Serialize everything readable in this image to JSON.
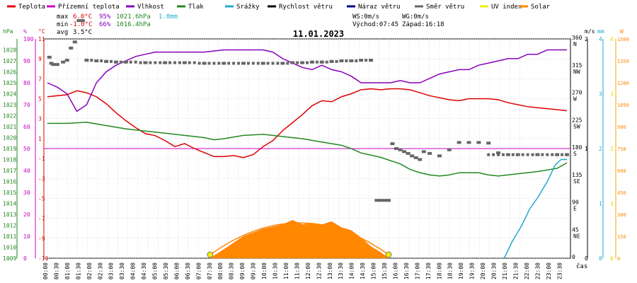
{
  "legend": [
    {
      "label": "Teplota",
      "color": "#dd0000"
    },
    {
      "label": "Přízemní teplota",
      "color": "#cc00cc"
    },
    {
      "label": "Vlhkost",
      "color": "#8800bb"
    },
    {
      "label": "Tlak",
      "color": "#228822"
    },
    {
      "label": "Srážky",
      "color": "#22aacc"
    },
    {
      "label": "Rychlost větru",
      "color": "#000000"
    },
    {
      "label": "Náraz větru",
      "color": "#000088"
    },
    {
      "label": "Směr větru",
      "color": "#666666"
    },
    {
      "label": "UV index",
      "color": "#eeee00"
    },
    {
      "label": "Solar",
      "color": "#ff8800"
    }
  ],
  "stats": {
    "max": {
      "label": "max",
      "temp": "6.0°C",
      "hum": "95%",
      "pres": "1021.6hPa",
      "rain": "1.8mm"
    },
    "min": {
      "label": "min",
      "temp": "-1.0°C",
      "hum": "66%",
      "pres": "1016.4hPa"
    },
    "avg": {
      "label": "avg",
      "temp": "3.5°C"
    }
  },
  "info": {
    "ws": "WS:0m/s",
    "wg": "WG:0m/s",
    "sunrise": "Východ:07:45",
    "sunset": "Západ:16:18"
  },
  "chart_data": {
    "type": "line",
    "title": "11.01.2023",
    "x_ticks": [
      "00:00",
      "00:30",
      "01:00",
      "01:30",
      "02:00",
      "02:30",
      "03:00",
      "03:30",
      "04:00",
      "04:30",
      "05:00",
      "05:30",
      "06:00",
      "06:30",
      "07:00",
      "07:30",
      "08:00",
      "08:30",
      "09:00",
      "09:30",
      "10:00",
      "10:30",
      "11:00",
      "11:30",
      "12:00",
      "12:30",
      "13:00",
      "13:30",
      "14:00",
      "14:30",
      "15:00",
      "15:30",
      "16:00",
      "16:30",
      "17:00",
      "17:30",
      "18:00",
      "18:30",
      "19:00",
      "19:30",
      "20:00",
      "20:30",
      "21:00",
      "21:30",
      "22:00",
      "22:30",
      "23:00",
      "23:30"
    ],
    "xlabel": "čas",
    "axes": {
      "pressure": {
        "unit": "hPa",
        "ticks": [
          "1028",
          "1027",
          "1026",
          "1025",
          "1024",
          "1023",
          "1022",
          "1021",
          "1020",
          "1019",
          "1018",
          "1017",
          "1016",
          "1015",
          "1014",
          "1013",
          "1012",
          "1011",
          "1010",
          "1009"
        ],
        "range": [
          1009,
          1029
        ]
      },
      "humidity": {
        "unit": "%",
        "ticks": [
          "100",
          "90",
          "80",
          "70",
          "60",
          "50",
          "40",
          "30",
          "20",
          "10",
          "0"
        ],
        "range": [
          0,
          100
        ]
      },
      "temperature": {
        "unit": "°C",
        "ticks": [
          "11",
          "9",
          "7",
          "5",
          "3",
          "1",
          "-1",
          "-3",
          "-5",
          "-7",
          "-9",
          "-11"
        ],
        "range": [
          -11,
          11
        ]
      },
      "wind_direction": {
        "ticks": [
          "360",
          "315",
          "270",
          "225",
          "180",
          "135",
          "90",
          "45",
          "0"
        ],
        "dir_labels": [
          "N",
          "NW",
          "W",
          "SW",
          "S",
          "SE",
          "E",
          "NE",
          ""
        ],
        "range": [
          0,
          360
        ]
      },
      "wind_speed": {
        "unit": "m/s",
        "ticks": [
          "2",
          "1",
          "0"
        ],
        "range": [
          0,
          2
        ]
      },
      "rain": {
        "unit": "mm",
        "ticks": [
          "4",
          "3",
          "2",
          "1",
          "0"
        ],
        "range": [
          0,
          4
        ]
      },
      "uv": {
        "ticks": [
          "4",
          "3",
          "2",
          "1",
          "0"
        ],
        "range": [
          0,
          4
        ]
      },
      "solar": {
        "unit": "W",
        "ticks": [
          "1500",
          "1350",
          "1200",
          "1050",
          "900",
          "750",
          "600",
          "450",
          "300",
          "150",
          "0"
        ],
        "range": [
          0,
          1500
        ]
      }
    },
    "series": [
      {
        "name": "Teplota",
        "axis": "temperature",
        "color": "#dd0000",
        "points": [
          [
            0,
            5.2
          ],
          [
            1,
            5.4
          ],
          [
            1.5,
            5.8
          ],
          [
            2,
            5.6
          ],
          [
            2.5,
            5.2
          ],
          [
            3,
            4.5
          ],
          [
            3.5,
            3.6
          ],
          [
            4,
            2.8
          ],
          [
            4.5,
            2.1
          ],
          [
            5,
            1.5
          ],
          [
            5.5,
            1.3
          ],
          [
            6,
            0.8
          ],
          [
            6.5,
            0.2
          ],
          [
            7,
            0.5
          ],
          [
            7.5,
            0.0
          ],
          [
            8,
            -0.4
          ],
          [
            8.5,
            -0.8
          ],
          [
            9,
            -0.8
          ],
          [
            9.5,
            -0.7
          ],
          [
            10,
            -0.9
          ],
          [
            10.5,
            -0.6
          ],
          [
            11,
            0.2
          ],
          [
            11.5,
            0.8
          ],
          [
            12,
            1.8
          ],
          [
            12.5,
            2.6
          ],
          [
            13,
            3.4
          ],
          [
            13.5,
            4.3
          ],
          [
            14,
            4.8
          ],
          [
            14.5,
            4.7
          ],
          [
            15,
            5.2
          ],
          [
            15.5,
            5.5
          ],
          [
            16,
            5.9
          ],
          [
            16.5,
            6.0
          ],
          [
            17,
            5.9
          ],
          [
            17.5,
            6.0
          ],
          [
            18,
            6.0
          ],
          [
            18.5,
            5.9
          ],
          [
            19,
            5.6
          ],
          [
            19.5,
            5.3
          ],
          [
            20,
            5.1
          ],
          [
            20.5,
            4.9
          ],
          [
            21,
            4.8
          ],
          [
            21.5,
            5.0
          ],
          [
            22,
            5.0
          ],
          [
            22.5,
            5.0
          ],
          [
            23,
            4.9
          ],
          [
            23.5,
            4.6
          ],
          [
            24,
            4.4
          ],
          [
            24.5,
            4.2
          ],
          [
            25,
            4.1
          ],
          [
            25.5,
            4.0
          ],
          [
            26,
            3.9
          ],
          [
            26.5,
            3.8
          ]
        ]
      },
      {
        "name": "Vlhkost",
        "axis": "humidity",
        "color": "#8800bb",
        "points": [
          [
            0,
            80
          ],
          [
            0.5,
            78
          ],
          [
            1,
            75
          ],
          [
            1.5,
            67
          ],
          [
            2,
            70
          ],
          [
            2.5,
            80
          ],
          [
            3,
            85
          ],
          [
            3.5,
            88
          ],
          [
            4,
            90
          ],
          [
            4.5,
            92
          ],
          [
            5,
            93
          ],
          [
            5.5,
            94
          ],
          [
            6,
            94
          ],
          [
            7,
            94
          ],
          [
            8,
            94
          ],
          [
            9,
            95
          ],
          [
            10,
            95
          ],
          [
            11,
            95
          ],
          [
            11.5,
            94
          ],
          [
            12,
            91
          ],
          [
            12.5,
            89
          ],
          [
            13,
            87
          ],
          [
            13.5,
            86
          ],
          [
            14,
            88
          ],
          [
            14.5,
            86
          ],
          [
            15,
            85
          ],
          [
            15.5,
            83
          ],
          [
            16,
            80
          ],
          [
            16.5,
            80
          ],
          [
            17,
            80
          ],
          [
            17.5,
            80
          ],
          [
            18,
            81
          ],
          [
            18.5,
            80
          ],
          [
            19,
            80
          ],
          [
            19.5,
            82
          ],
          [
            20,
            84
          ],
          [
            20.5,
            85
          ],
          [
            21,
            86
          ],
          [
            21.5,
            86
          ],
          [
            22,
            88
          ],
          [
            22.5,
            89
          ],
          [
            23,
            90
          ],
          [
            23.5,
            91
          ],
          [
            24,
            91
          ],
          [
            24.5,
            93
          ],
          [
            25,
            93
          ],
          [
            25.5,
            95
          ],
          [
            26,
            95
          ],
          [
            26.5,
            95
          ]
        ]
      },
      {
        "name": "Tlak",
        "axis": "pressure",
        "color": "#228822",
        "points": [
          [
            0,
            1021.3
          ],
          [
            1,
            1021.3
          ],
          [
            2,
            1021.4
          ],
          [
            3,
            1021.1
          ],
          [
            4,
            1020.8
          ],
          [
            5,
            1020.6
          ],
          [
            6,
            1020.4
          ],
          [
            7,
            1020.2
          ],
          [
            8,
            1020.0
          ],
          [
            8.5,
            1019.8
          ],
          [
            9,
            1019.9
          ],
          [
            10,
            1020.2
          ],
          [
            11,
            1020.3
          ],
          [
            12,
            1020.1
          ],
          [
            12.5,
            1020.0
          ],
          [
            13,
            1019.9
          ],
          [
            14,
            1019.6
          ],
          [
            15,
            1019.3
          ],
          [
            15.5,
            1019.0
          ],
          [
            16,
            1018.6
          ],
          [
            17,
            1018.2
          ],
          [
            18,
            1017.6
          ],
          [
            18.5,
            1017.1
          ],
          [
            19,
            1016.8
          ],
          [
            19.5,
            1016.6
          ],
          [
            20,
            1016.5
          ],
          [
            20.5,
            1016.6
          ],
          [
            21,
            1016.8
          ],
          [
            22,
            1016.8
          ],
          [
            22.5,
            1016.6
          ],
          [
            23,
            1016.5
          ],
          [
            24,
            1016.7
          ],
          [
            25,
            1016.9
          ],
          [
            26,
            1017.2
          ],
          [
            26.5,
            1017.7
          ]
        ]
      },
      {
        "name": "Srážky",
        "axis": "rain",
        "color": "#22aacc",
        "points": [
          [
            23.3,
            0
          ],
          [
            23.7,
            0.3
          ],
          [
            24.2,
            0.6
          ],
          [
            24.6,
            0.9
          ],
          [
            25,
            1.1
          ],
          [
            25.5,
            1.4
          ],
          [
            25.9,
            1.7
          ],
          [
            26.2,
            1.8
          ],
          [
            26.5,
            1.8
          ]
        ]
      },
      {
        "name": "Směr větru",
        "axis": "wind_direction",
        "color": "#666666",
        "points": [
          [
            0.1,
            330
          ],
          [
            0.2,
            320
          ],
          [
            0.3,
            318
          ],
          [
            0.5,
            318
          ],
          [
            0.8,
            322
          ],
          [
            1.0,
            325
          ],
          [
            1.2,
            345
          ],
          [
            1.4,
            355
          ],
          [
            1.6,
            390
          ],
          [
            1.8,
            390
          ],
          [
            2,
            325
          ],
          [
            2.5,
            324
          ],
          [
            3,
            323
          ],
          [
            3.5,
            322
          ],
          [
            4,
            322
          ],
          [
            5,
            321
          ],
          [
            6,
            321
          ],
          [
            7,
            321
          ],
          [
            8,
            320
          ],
          [
            9,
            320
          ],
          [
            10,
            320
          ],
          [
            11,
            320
          ],
          [
            12,
            320
          ],
          [
            12.5,
            321
          ],
          [
            13,
            321
          ],
          [
            13.5,
            322
          ],
          [
            14,
            322
          ],
          [
            14.5,
            323
          ],
          [
            15,
            324
          ],
          [
            15.5,
            324
          ],
          [
            16,
            325
          ],
          [
            16.5,
            325
          ],
          [
            16.8,
            95
          ],
          [
            17,
            95
          ],
          [
            17.2,
            95
          ],
          [
            17.4,
            95
          ],
          [
            17.6,
            188
          ],
          [
            17.8,
            180
          ],
          [
            18,
            178
          ],
          [
            18.2,
            175
          ],
          [
            18.4,
            172
          ],
          [
            18.6,
            168
          ],
          [
            18.8,
            165
          ],
          [
            19,
            162
          ],
          [
            19.2,
            175
          ],
          [
            19.5,
            172
          ],
          [
            20,
            168
          ],
          [
            20.5,
            178
          ],
          [
            21,
            190
          ],
          [
            21.5,
            190
          ],
          [
            22,
            190
          ],
          [
            22.5,
            189
          ],
          [
            23,
            173
          ],
          [
            23.5,
            170
          ],
          [
            24,
            170
          ],
          [
            25,
            170
          ],
          [
            26,
            170
          ],
          [
            26.5,
            170
          ]
        ]
      },
      {
        "name": "Solar",
        "axis": "solar",
        "color": "#ff8800",
        "points": [
          [
            8.3,
            0
          ],
          [
            9,
            60
          ],
          [
            10,
            150
          ],
          [
            11,
            200
          ],
          [
            12,
            230
          ],
          [
            12.5,
            260
          ],
          [
            13,
            230
          ],
          [
            13.5,
            240
          ],
          [
            14,
            230
          ],
          [
            14.5,
            250
          ],
          [
            15,
            210
          ],
          [
            15.5,
            190
          ],
          [
            16,
            140
          ],
          [
            16.5,
            80
          ],
          [
            17,
            40
          ],
          [
            17.4,
            0
          ]
        ]
      }
    ],
    "reference_line": {
      "axis": "temperature",
      "value": 0,
      "color": "#cc00cc"
    },
    "sun_curve": {
      "sunrise": "07:45",
      "sunset": "16:18",
      "color": "#ff8800"
    }
  }
}
